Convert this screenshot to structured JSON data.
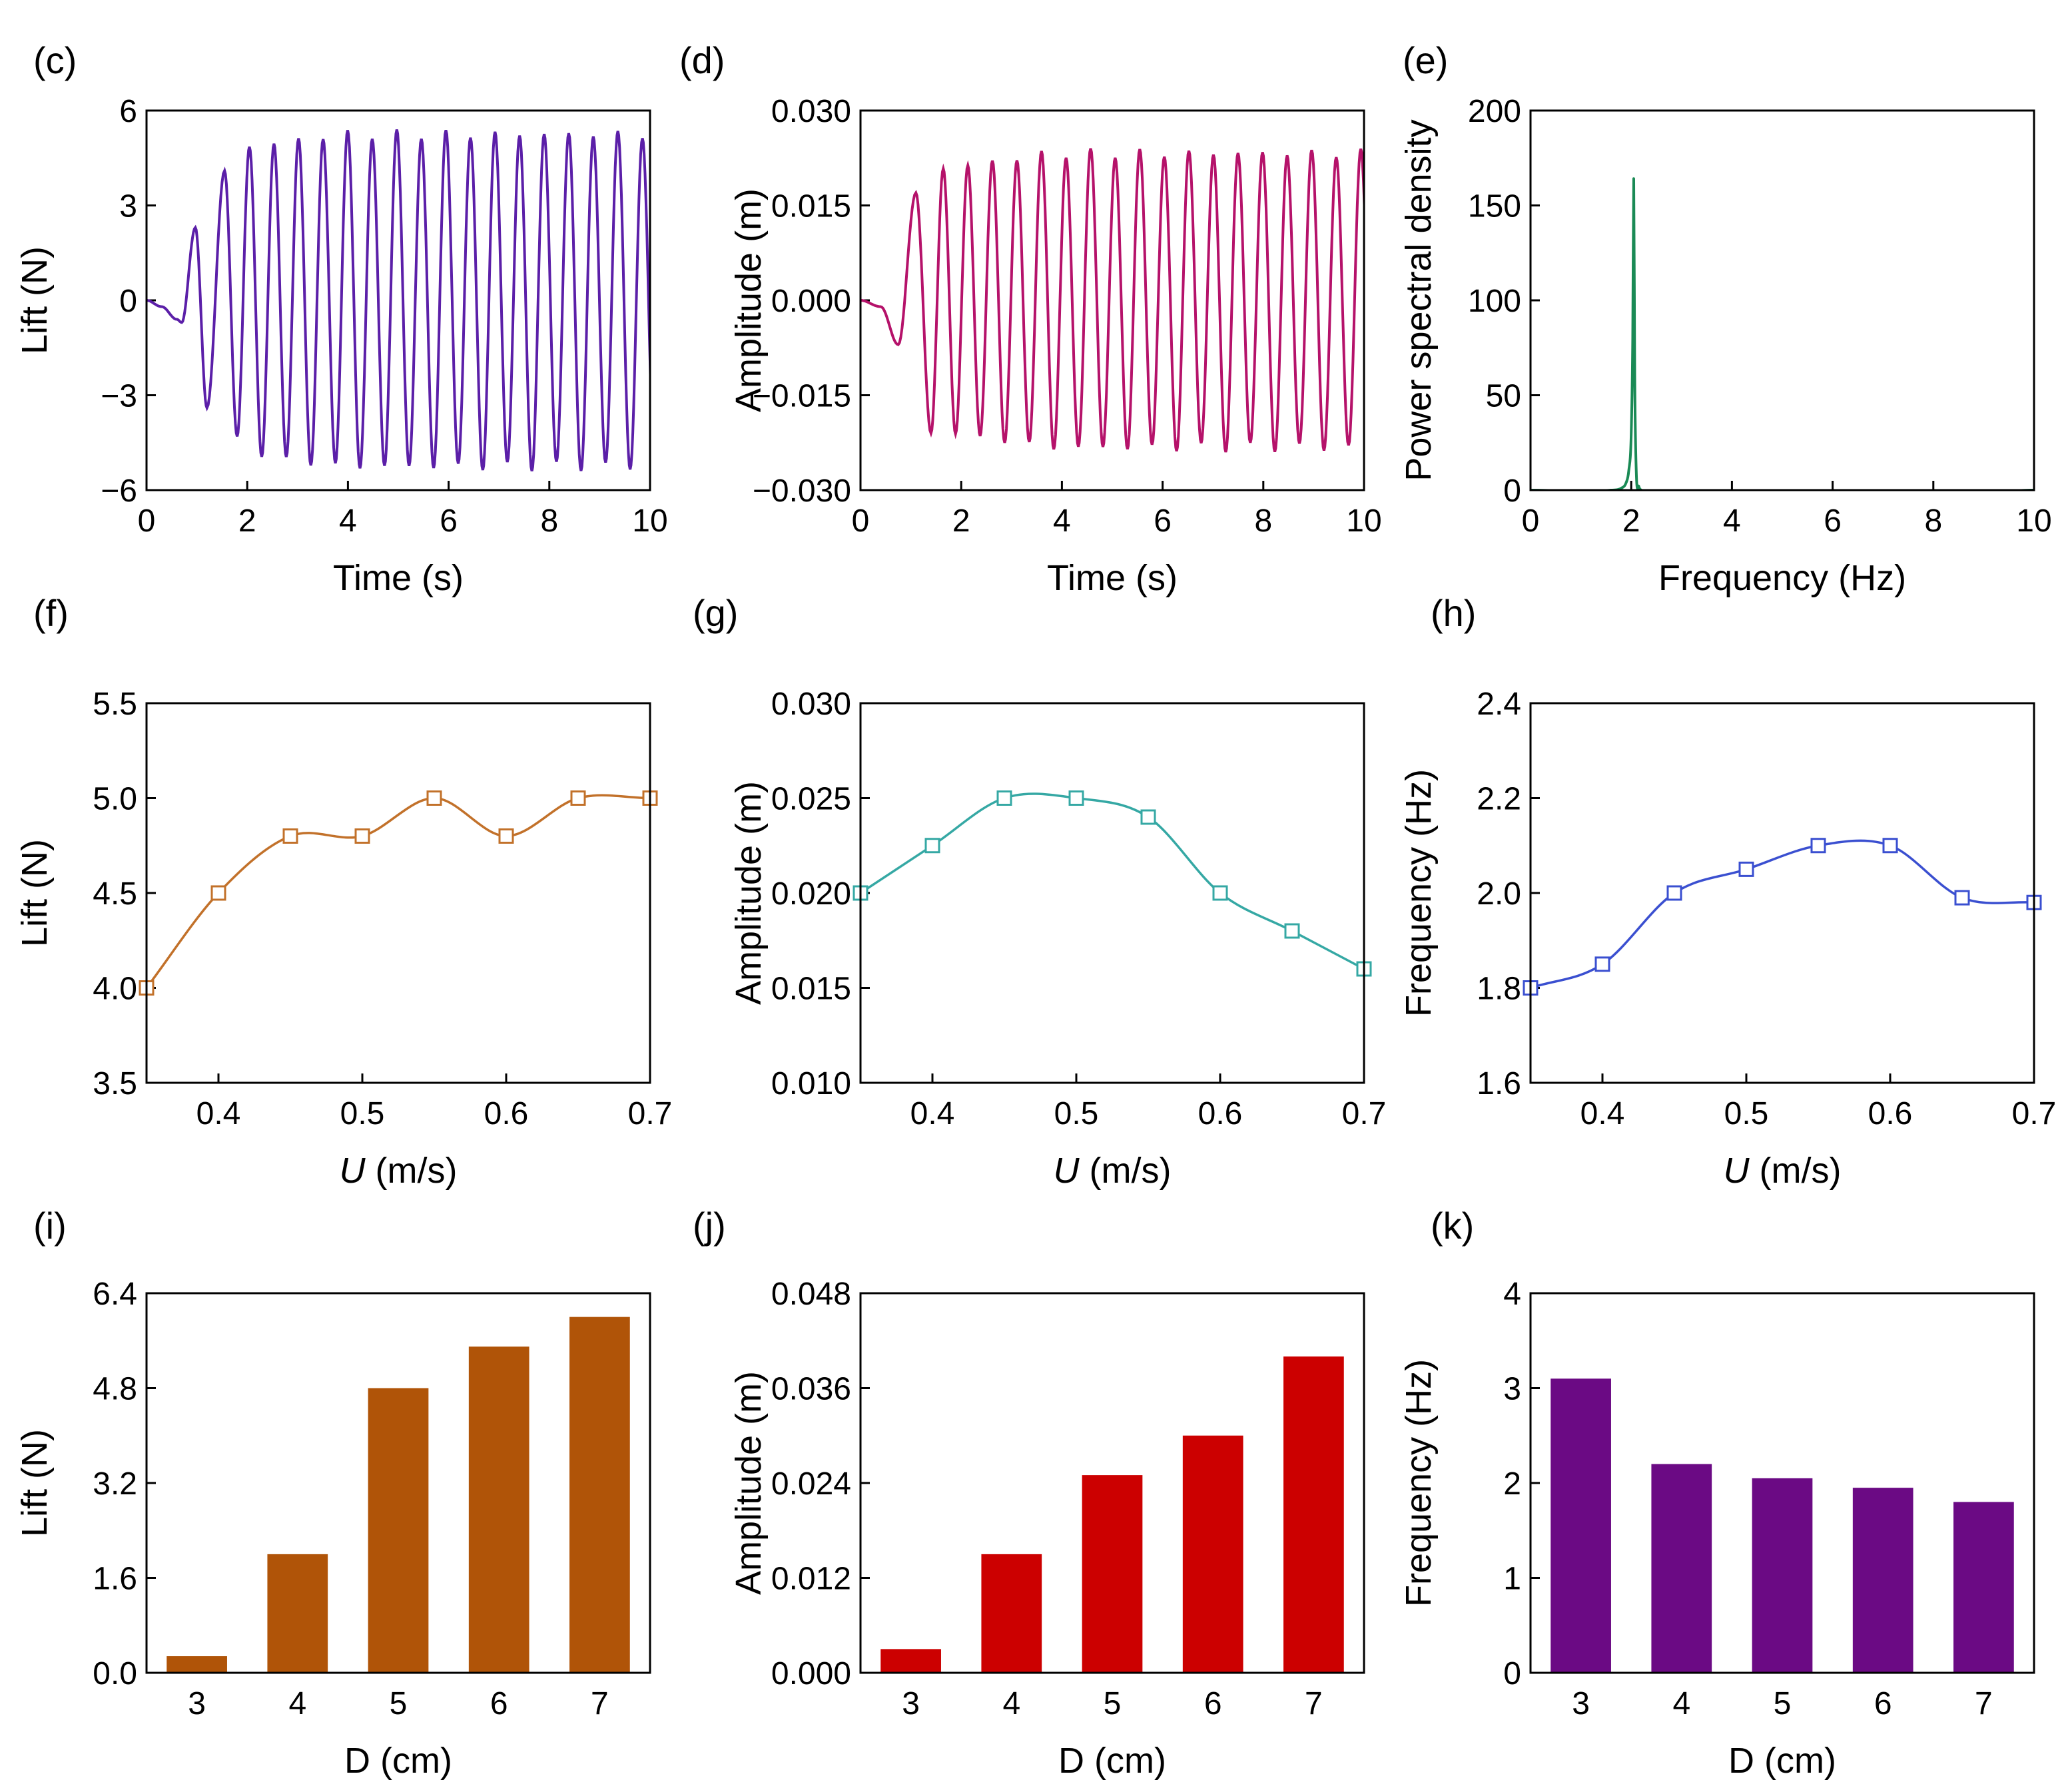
{
  "figure": {
    "panels": [
      "(c)",
      "(d)",
      "(e)",
      "(f)",
      "(g)",
      "(h)",
      "(i)",
      "(j)",
      "(k)"
    ]
  },
  "chart_data": [
    {
      "id": "c",
      "label": "(c)",
      "type": "line",
      "xlabel": "Time (s)",
      "ylabel": "Lift (N)",
      "xlim": [
        0,
        10
      ],
      "ylim": [
        -6,
        6
      ],
      "xticks": [
        "0",
        "2",
        "4",
        "6",
        "8",
        "10"
      ],
      "yticks": [
        "6",
        "3",
        "0",
        "−3",
        "−6"
      ],
      "xtick_values": [
        0,
        2,
        4,
        6,
        8,
        10
      ],
      "ytick_values": [
        6,
        3,
        0,
        -3,
        -6
      ],
      "color": "#5b1fa8",
      "series": [
        {
          "name": "Lift",
          "x": [
            0,
            0.3,
            0.6,
            0.7
          ],
          "values": [
            0,
            -0.2,
            -0.6,
            -0.7
          ]
        }
      ],
      "signal": {
        "frequency_hz": 2.05,
        "startup_peaks": [
          {
            "t": 0.97,
            "v": 2.3
          },
          {
            "t": 1.2,
            "v": -3.4
          },
          {
            "t": 1.55,
            "v": 4.1
          },
          {
            "t": 1.8,
            "v": -4.3
          }
        ],
        "steady_amplitude": [
          4.8,
          5.4
        ]
      }
    },
    {
      "id": "d",
      "label": "(d)",
      "type": "line",
      "xlabel": "Time (s)",
      "ylabel": "Amplitude (m)",
      "xlim": [
        0,
        10
      ],
      "ylim": [
        -0.03,
        0.03
      ],
      "xticks": [
        "0",
        "2",
        "4",
        "6",
        "8",
        "10"
      ],
      "yticks": [
        "0.030",
        "0.015",
        "0.000",
        "−0.015",
        "−0.030"
      ],
      "xtick_values": [
        0,
        2,
        4,
        6,
        8,
        10
      ],
      "ytick_values": [
        0.03,
        0.015,
        0,
        -0.015,
        -0.03
      ],
      "color": "#b5126a",
      "series": [
        {
          "name": "Amplitude",
          "x": [
            0,
            0.4,
            0.75
          ],
          "values": [
            0,
            -0.001,
            -0.007
          ]
        }
      ],
      "signal": {
        "frequency_hz": 2.05,
        "startup_peaks": [
          {
            "t": 1.1,
            "v": 0.017
          },
          {
            "t": 1.4,
            "v": -0.021
          }
        ],
        "steady_amplitude": [
          0.021,
          0.024
        ]
      }
    },
    {
      "id": "e",
      "label": "(e)",
      "type": "line",
      "xlabel": "Frequency (Hz)",
      "ylabel": "Power spectral density",
      "xlim": [
        0,
        10
      ],
      "ylim": [
        0,
        200
      ],
      "xticks": [
        "0",
        "2",
        "4",
        "6",
        "8",
        "10"
      ],
      "yticks": [
        "200",
        "150",
        "100",
        "50",
        "0"
      ],
      "xtick_values": [
        0,
        2,
        4,
        6,
        8,
        10
      ],
      "ytick_values": [
        200,
        150,
        100,
        50,
        0
      ],
      "color": "#1a8a55",
      "series": [
        {
          "name": "PSD",
          "x": [
            0,
            1.6,
            1.8,
            1.9,
            1.95,
            2.0,
            2.03,
            2.05,
            2.07,
            2.1,
            2.15,
            2.2,
            10
          ],
          "values": [
            0,
            0,
            1,
            4,
            10,
            30,
            80,
            164,
            60,
            10,
            2,
            0,
            0
          ]
        }
      ]
    },
    {
      "id": "f",
      "label": "(f)",
      "type": "line",
      "xlabel_italic": "U",
      "xlabel_rest": " (m/s)",
      "ylabel": "Lift (N)",
      "xlim": [
        0.35,
        0.7
      ],
      "ylim": [
        3.5,
        5.5
      ],
      "xticks": [
        "0.4",
        "0.5",
        "0.6",
        "0.7"
      ],
      "yticks": [
        "5.5",
        "5.0",
        "4.5",
        "4.0",
        "3.5"
      ],
      "xtick_values": [
        0.4,
        0.5,
        0.6,
        0.7
      ],
      "ytick_values": [
        5.5,
        5.0,
        4.5,
        4.0,
        3.5
      ],
      "color": "#c2712a",
      "series": [
        {
          "name": "Lift",
          "x": [
            0.35,
            0.4,
            0.45,
            0.5,
            0.55,
            0.6,
            0.65,
            0.7
          ],
          "values": [
            4.0,
            4.5,
            4.8,
            4.8,
            5.0,
            4.8,
            5.0,
            5.0
          ]
        }
      ]
    },
    {
      "id": "g",
      "label": "(g)",
      "type": "line",
      "xlabel_italic": "U",
      "xlabel_rest": " (m/s)",
      "ylabel": "Amplitude (m)",
      "xlim": [
        0.35,
        0.7
      ],
      "ylim": [
        0.01,
        0.03
      ],
      "xticks": [
        "0.4",
        "0.5",
        "0.6",
        "0.7"
      ],
      "yticks": [
        "0.030",
        "0.025",
        "0.020",
        "0.015",
        "0.010"
      ],
      "xtick_values": [
        0.4,
        0.5,
        0.6,
        0.7
      ],
      "ytick_values": [
        0.03,
        0.025,
        0.02,
        0.015,
        0.01
      ],
      "color": "#35a8a4",
      "series": [
        {
          "name": "Amplitude",
          "x": [
            0.35,
            0.4,
            0.45,
            0.5,
            0.55,
            0.6,
            0.65,
            0.7
          ],
          "values": [
            0.02,
            0.0225,
            0.025,
            0.025,
            0.024,
            0.02,
            0.018,
            0.016
          ]
        }
      ]
    },
    {
      "id": "h",
      "label": "(h)",
      "type": "line",
      "xlabel_italic": "U",
      "xlabel_rest": " (m/s)",
      "ylabel": "Frequency (Hz)",
      "xlim": [
        0.35,
        0.7
      ],
      "ylim": [
        1.6,
        2.4
      ],
      "xticks": [
        "0.4",
        "0.5",
        "0.6",
        "0.7"
      ],
      "yticks": [
        "2.4",
        "2.2",
        "2.0",
        "1.8",
        "1.6"
      ],
      "xtick_values": [
        0.4,
        0.5,
        0.6,
        0.7
      ],
      "ytick_values": [
        2.4,
        2.2,
        2.0,
        1.8,
        1.6
      ],
      "color": "#3a4fd0",
      "series": [
        {
          "name": "Frequency",
          "x": [
            0.35,
            0.4,
            0.45,
            0.5,
            0.55,
            0.6,
            0.65,
            0.7
          ],
          "values": [
            1.8,
            1.85,
            2.0,
            2.05,
            2.1,
            2.1,
            1.99,
            1.98
          ]
        }
      ]
    },
    {
      "id": "i",
      "label": "(i)",
      "type": "bar",
      "xlabel": "D (cm)",
      "ylabel": "Lift (N)",
      "ylim": [
        0,
        6.4
      ],
      "categories": [
        "3",
        "4",
        "5",
        "6",
        "7"
      ],
      "yticks": [
        "6.4",
        "4.8",
        "3.2",
        "1.6",
        "0.0"
      ],
      "ytick_values": [
        6.4,
        4.8,
        3.2,
        1.6,
        0
      ],
      "color": "#b05408",
      "values": [
        0.28,
        2.0,
        4.8,
        5.5,
        6.0
      ]
    },
    {
      "id": "j",
      "label": "(j)",
      "type": "bar",
      "xlabel": "D (cm)",
      "ylabel": "Amplitude (m)",
      "ylim": [
        0,
        0.048
      ],
      "categories": [
        "3",
        "4",
        "5",
        "6",
        "7"
      ],
      "yticks": [
        "0.048",
        "0.036",
        "0.024",
        "0.012",
        "0.000"
      ],
      "ytick_values": [
        0.048,
        0.036,
        0.024,
        0.012,
        0
      ],
      "color": "#cc0000",
      "values": [
        0.003,
        0.015,
        0.025,
        0.03,
        0.04
      ]
    },
    {
      "id": "k",
      "label": "(k)",
      "type": "bar",
      "xlabel": "D (cm)",
      "ylabel": "Frequency (Hz)",
      "ylim": [
        0,
        4
      ],
      "categories": [
        "3",
        "4",
        "5",
        "6",
        "7"
      ],
      "yticks": [
        "4",
        "3",
        "2",
        "1",
        "0"
      ],
      "ytick_values": [
        4,
        3,
        2,
        1,
        0
      ],
      "color": "#6b0a84",
      "values": [
        3.1,
        2.2,
        2.05,
        1.95,
        1.8
      ]
    }
  ]
}
